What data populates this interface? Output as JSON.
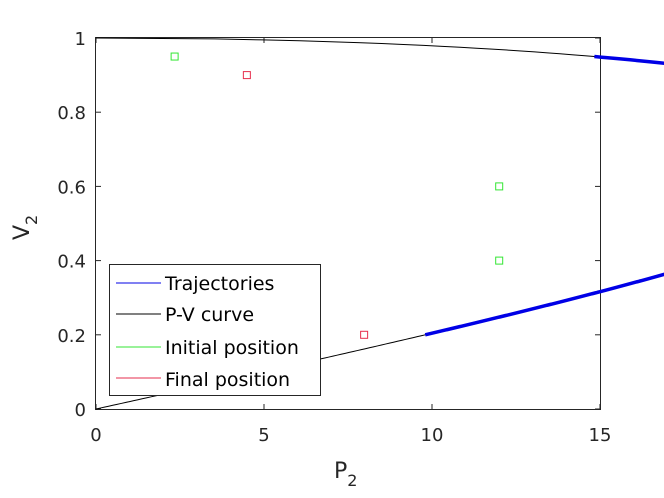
{
  "chart_data": {
    "type": "line",
    "xlabel": {
      "main": "P",
      "sub": "2"
    },
    "ylabel": {
      "main": "V",
      "sub": "2"
    },
    "xlim": [
      0,
      15
    ],
    "ylim": [
      0,
      1
    ],
    "xticks": [
      0,
      5,
      10,
      15
    ],
    "xtick_labels": [
      "0",
      "5",
      "10",
      "15"
    ],
    "yticks": [
      0,
      0.2,
      0.4,
      0.6,
      0.8,
      1
    ],
    "ytick_labels": [
      "0",
      "0.2",
      "0.4",
      "0.6",
      "0.8",
      "1"
    ],
    "grid": false,
    "legend_position": "bottom-left",
    "pv_curve": {
      "name": "P-V curve",
      "color": "#000000",
      "formula": "P = 50 * V * sqrt(1 - V^2)",
      "v_range": [
        0,
        1
      ]
    },
    "trajectories": {
      "name": "Trajectories",
      "color": "#0000e6",
      "segments": [
        {
          "v_from": 0.95,
          "v_to": 0.6
        },
        {
          "v_from": 0.4,
          "v_to": 0.2
        }
      ]
    },
    "initial_positions": {
      "name": "Initial position",
      "color": "#33e633",
      "points": [
        {
          "x": 2.34,
          "y": 0.95
        },
        {
          "x": 12.0,
          "y": 0.6
        },
        {
          "x": 12.0,
          "y": 0.4
        }
      ]
    },
    "final_positions": {
      "name": "Final position",
      "color": "#e62e4d",
      "points": [
        {
          "x": 4.49,
          "y": 0.9
        },
        {
          "x": 7.98,
          "y": 0.2
        }
      ]
    },
    "legend": [
      "Trajectories",
      "P-V curve",
      "Initial position",
      "Final position"
    ]
  }
}
